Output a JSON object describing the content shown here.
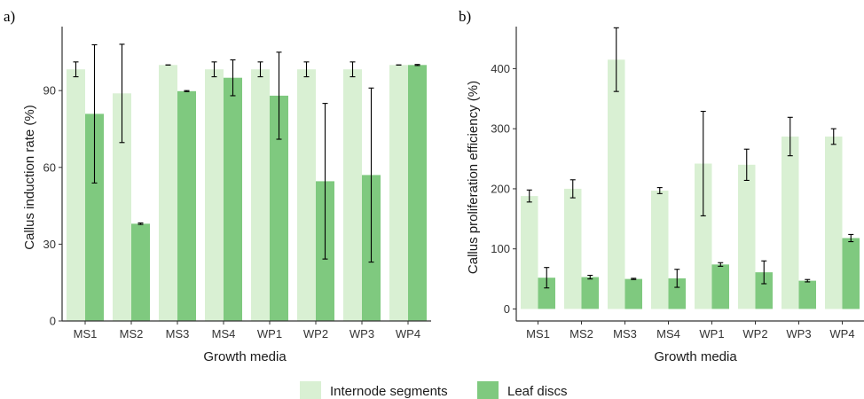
{
  "colors": {
    "internode": "#d9f0d3",
    "leaf": "#7fc97f",
    "axis": "#333333",
    "error": "#000000"
  },
  "legend": {
    "items": [
      {
        "label": "Internode segments",
        "color": "#d9f0d3"
      },
      {
        "label": "Leaf discs",
        "color": "#7fc97f"
      }
    ]
  },
  "chart_data": [
    {
      "panel": "a)",
      "type": "bar",
      "xlabel": "Growth media",
      "ylabel": "Callus induction rate (%)",
      "ylim": [
        0,
        115
      ],
      "yticks": [
        0,
        30,
        60,
        90
      ],
      "grid": false,
      "categories": [
        "MS1",
        "MS2",
        "MS3",
        "MS4",
        "WP1",
        "WP2",
        "WP3",
        "WP4"
      ],
      "series": [
        {
          "name": "Internode segments",
          "values": [
            98.3,
            88.9,
            100,
            98.3,
            98.3,
            98.3,
            98.3,
            100
          ],
          "err": [
            2.9,
            19.2,
            0,
            2.9,
            2.9,
            2.9,
            2.9,
            0
          ]
        },
        {
          "name": "Leaf discs",
          "values": [
            80.9,
            38.0,
            89.8,
            95.0,
            88.0,
            54.6,
            57.0,
            100
          ],
          "err": [
            27,
            0.3,
            0.2,
            7,
            17,
            30.4,
            34,
            0.2
          ]
        }
      ]
    },
    {
      "panel": "b)",
      "type": "bar",
      "xlabel": "Growth media",
      "ylabel": "Callus proliferation efficiency (%)",
      "ylim": [
        -20,
        470
      ],
      "yticks": [
        0,
        100,
        200,
        300,
        400
      ],
      "grid": false,
      "categories": [
        "MS1",
        "MS2",
        "MS3",
        "MS4",
        "WP1",
        "WP2",
        "WP3",
        "WP4"
      ],
      "series": [
        {
          "name": "Internode segments",
          "values": [
            188,
            200,
            415,
            197,
            242,
            240,
            287,
            287
          ],
          "err": [
            10,
            15,
            53,
            5,
            87,
            26,
            32,
            13
          ]
        },
        {
          "name": "Leaf discs",
          "values": [
            52,
            53,
            50,
            51,
            74,
            61,
            47,
            118
          ],
          "err": [
            17,
            3,
            1,
            15,
            3,
            19,
            2,
            6
          ]
        }
      ]
    }
  ]
}
